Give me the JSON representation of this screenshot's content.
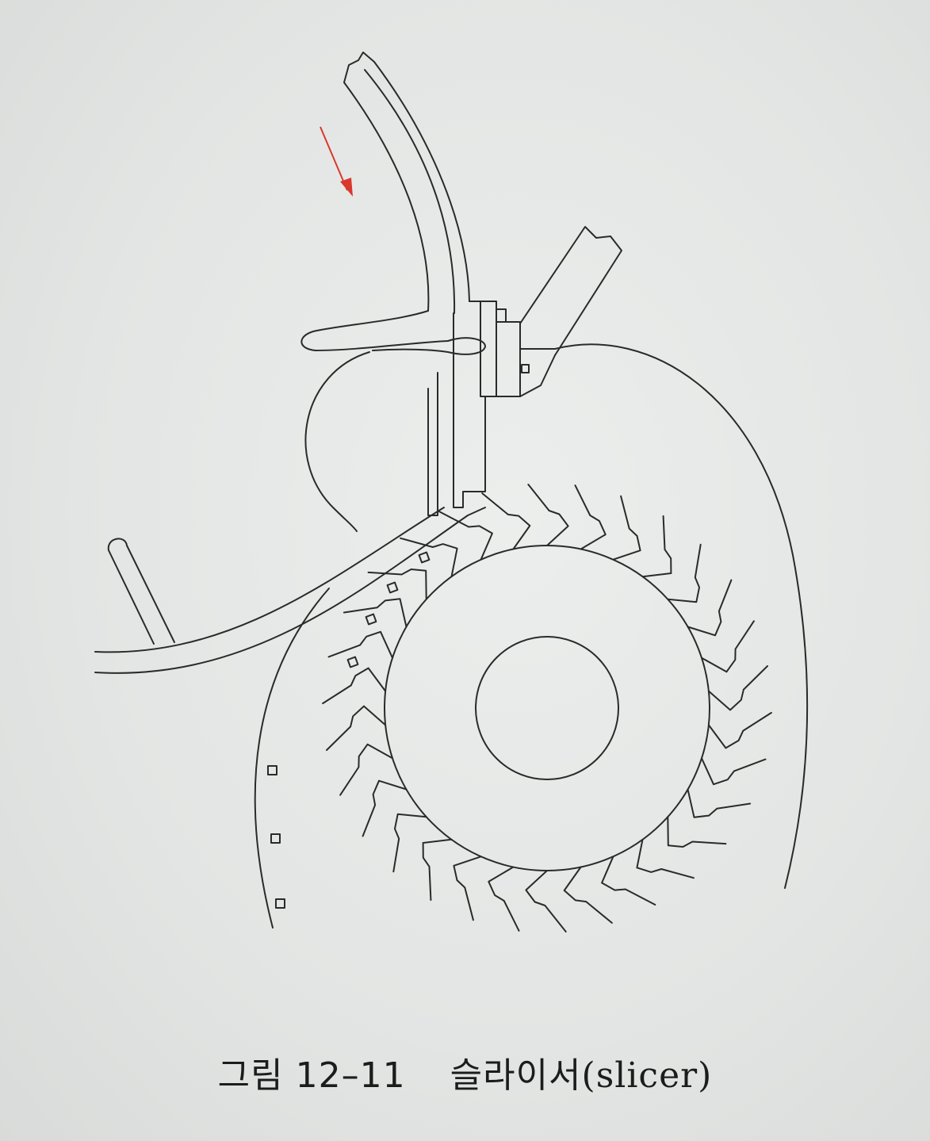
{
  "figure": {
    "label": "그림 12–11",
    "title_ko": "슬라이서",
    "title_en": "(slicer)",
    "arrow_color": "#d9382c",
    "line_color": "#2a2a2a",
    "background_color": "#e4e6e5"
  }
}
